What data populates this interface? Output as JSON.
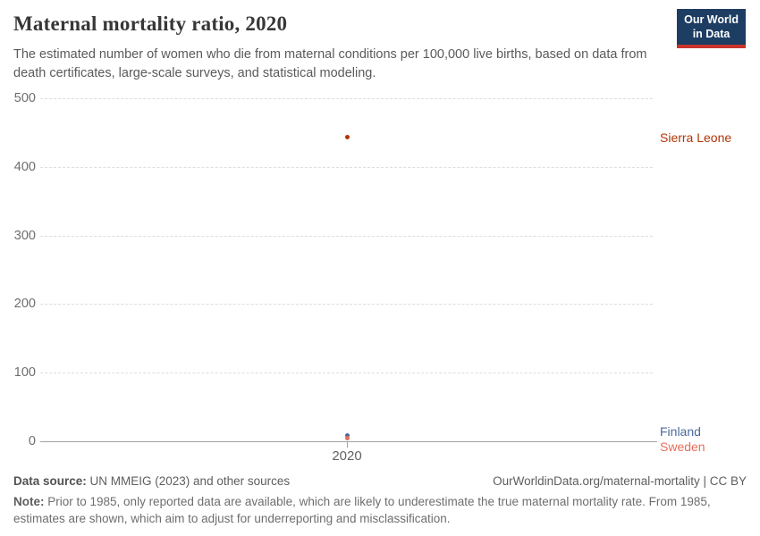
{
  "header": {
    "title": "Maternal mortality ratio, 2020",
    "subtitle": "The estimated number of women who die from maternal conditions per 100,000 live births, based on data from death certificates, large-scale surveys, and statistical modeling.",
    "logo": {
      "line1": "Our World",
      "line2": "in Data",
      "bg_color": "#1d3d63",
      "accent_color": "#c9342c"
    }
  },
  "chart_data": {
    "type": "scatter",
    "title": "Maternal mortality ratio, 2020",
    "x": [
      2020
    ],
    "xticks": [
      "2020"
    ],
    "yticks": [
      0,
      100,
      200,
      300,
      400,
      500
    ],
    "ylim": [
      0,
      500
    ],
    "grid": "horizontal-dashed",
    "legend_position": "right-inline-entity-labels",
    "series": [
      {
        "name": "Sierra Leone",
        "values": [
          443
        ],
        "color": "#B13507"
      },
      {
        "name": "Finland",
        "values": [
          8
        ],
        "color": "#4C6A9C"
      },
      {
        "name": "Sweden",
        "values": [
          5
        ],
        "color": "#E56E5A"
      }
    ]
  },
  "footer": {
    "data_source_label": "Data source:",
    "data_source_text": " UN MMEIG (2023) and other sources",
    "citation": "OurWorldinData.org/maternal-mortality | CC BY",
    "note_label": "Note:",
    "note_text": " Prior to 1985, only reported data are available, which are likely to underestimate the true maternal mortality rate. From 1985, estimates are shown, which aim to adjust for underreporting and misclassification."
  }
}
